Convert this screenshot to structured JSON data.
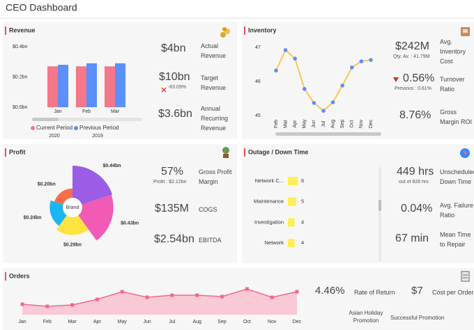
{
  "header": {
    "title": "CEO Dashboard"
  },
  "revenue": {
    "title": "Revenue",
    "chart": {
      "type": "bar",
      "categories": [
        "Jan",
        "Feb",
        "Mar"
      ],
      "series": [
        {
          "name": "Current Period",
          "period": "2020",
          "color": "#f4778a",
          "values": [
            0.27,
            0.27,
            0.27
          ]
        },
        {
          "name": "Previous Period",
          "period": "2019",
          "color": "#5b8ff9",
          "values": [
            0.28,
            0.29,
            0.29
          ]
        }
      ],
      "ylim": [
        0,
        0.4
      ],
      "yticks": [
        {
          "value": 0,
          "label": "$0.0bn"
        },
        {
          "value": 0.2,
          "label": "$0.2bn"
        },
        {
          "value": 0.4,
          "label": "$0.4bn"
        }
      ]
    },
    "kpis": [
      {
        "value": "$4bn",
        "label": "Actual Revenue"
      },
      {
        "value": "$10bn",
        "label": "Target Revenue",
        "note": "-63.09%"
      },
      {
        "value": "$3.6bn",
        "label": "Annual Recurring Revenue"
      }
    ]
  },
  "inventory": {
    "title": "Inventory",
    "chart": {
      "type": "line",
      "categories": [
        "Feb",
        "Mar",
        "Apr",
        "May",
        "Jun",
        "Jul",
        "Aug",
        "Sep",
        "Oct",
        "Nov",
        "Dec"
      ],
      "values": [
        46.32,
        46.92,
        46.67,
        45.78,
        45.37,
        45.14,
        45.39,
        45.88,
        46.41,
        46.59,
        46.63
      ],
      "color": "#f9c74f",
      "marker_color": "#5b8ff9",
      "ylim": [
        45,
        47
      ],
      "yticks": [
        45,
        46,
        47
      ]
    },
    "kpis": [
      {
        "value": "$242M",
        "label": "Avg. Inventory Cost",
        "note": "Qty. Av. : 41.79M"
      },
      {
        "value": "0.56%",
        "label": "Turnover Ratio",
        "note": "Previous : 0.61%"
      },
      {
        "value": "8.76%",
        "label": "Gross Margin ROI"
      }
    ]
  },
  "profit": {
    "title": "Profit",
    "chart": {
      "type": "polar-area",
      "center_label": "Brand",
      "values": [
        0.44,
        0.43,
        0.29,
        0.24,
        0.2
      ],
      "value_labels": [
        "$0.44bn",
        "$0.43bn",
        "$0.29bn",
        "$0.24bn",
        "$0.20bn"
      ],
      "colors": [
        "#9b5de5",
        "#f15bb5",
        "#fee440",
        "#19b6f5",
        "#f96e46"
      ]
    },
    "kpis": [
      {
        "value": "57%",
        "label": "Gross Profit Margin",
        "note": "Profit : $2.12bn"
      },
      {
        "value": "$135M",
        "label": "COGS"
      },
      {
        "value": "$2.54bn",
        "label": "EBITDA"
      }
    ]
  },
  "outage": {
    "title": "Outage / Down Time",
    "chart": {
      "type": "hbar",
      "categories": [
        "Network C...",
        "Maintenance",
        "Investigation",
        "Network"
      ],
      "values": [
        6,
        5,
        4,
        4
      ],
      "color": "#ffee58"
    },
    "kpis": [
      {
        "value": "449 hrs",
        "label": "Unscheduled Down Time",
        "note": "out of 826 hrs"
      },
      {
        "value": "0.04%",
        "label": "Avg. Failure Ratio"
      },
      {
        "value": "67 min",
        "label": "Mean Time to Repair"
      }
    ]
  },
  "orders": {
    "title": "Orders",
    "chart": {
      "type": "area",
      "categories": [
        "Jan",
        "Feb",
        "Mar",
        "Apr",
        "May",
        "Jun",
        "Jul",
        "Aug",
        "Sep",
        "Oct",
        "Nov",
        "Dec"
      ],
      "values": [
        13,
        10,
        12,
        20,
        31,
        23,
        26,
        26,
        24,
        35,
        23,
        31
      ],
      "color": "#ee6a8c",
      "fill": "#f9c9d5"
    },
    "kpis": [
      {
        "value": "4.46%",
        "label": "Rate of Return"
      },
      {
        "value": "$7",
        "label": "Cost per Order"
      }
    ],
    "promotions": [
      "Asian Holiday Promotion",
      "Successful Promotion"
    ]
  }
}
